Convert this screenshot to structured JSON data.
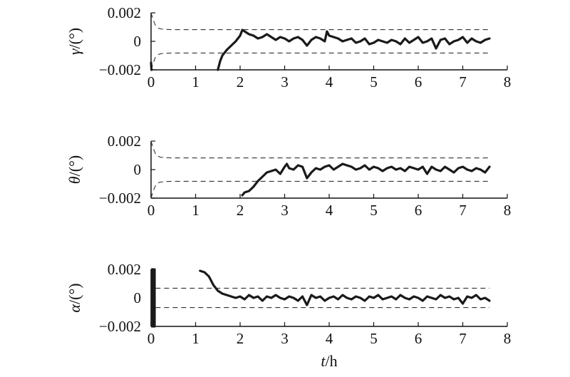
{
  "chart_data": [
    {
      "type": "line",
      "ylabel_symbol": "γ",
      "ylabel_unit": "/(°)",
      "xlim": [
        0,
        8
      ],
      "ylim": [
        -0.002,
        0.002
      ],
      "xticks": [
        0,
        1,
        2,
        3,
        4,
        5,
        6,
        7,
        8
      ],
      "xtick_labels": [
        "0",
        "1",
        "2",
        "3",
        "4",
        "5",
        "6",
        "7",
        "8"
      ],
      "yticks": [
        0.002,
        0,
        -0.002
      ],
      "ytick_labels": [
        "0.002",
        "0",
        "−0.002"
      ],
      "bounds": {
        "style": "dashed",
        "upper": [
          [
            0.0,
            0.002
          ],
          [
            0.05,
            0.0015
          ],
          [
            0.1,
            0.0011
          ],
          [
            0.15,
            0.00095
          ],
          [
            0.2,
            0.00088
          ],
          [
            0.3,
            0.00084
          ],
          [
            0.5,
            0.00082
          ],
          [
            7.6,
            0.00082
          ]
        ],
        "lower": [
          [
            0.0,
            -0.002
          ],
          [
            0.05,
            -0.0015
          ],
          [
            0.1,
            -0.0011
          ],
          [
            0.15,
            -0.00095
          ],
          [
            0.2,
            -0.00088
          ],
          [
            0.3,
            -0.00084
          ],
          [
            0.5,
            -0.00082
          ],
          [
            7.6,
            -0.00082
          ]
        ]
      },
      "series": [
        {
          "x": [
            0.0,
            0.01,
            0.02,
            1.5,
            1.55,
            1.6,
            1.7,
            1.8,
            1.9,
            2.0,
            2.05,
            2.1,
            2.2,
            2.3,
            2.4,
            2.5,
            2.6,
            2.7,
            2.8,
            2.9,
            3.0,
            3.1,
            3.2,
            3.3,
            3.4,
            3.5,
            3.6,
            3.7,
            3.8,
            3.9,
            3.95,
            4.0,
            4.1,
            4.2,
            4.3,
            4.4,
            4.5,
            4.6,
            4.7,
            4.8,
            4.9,
            5.0,
            5.1,
            5.2,
            5.3,
            5.4,
            5.5,
            5.6,
            5.7,
            5.8,
            5.9,
            6.0,
            6.1,
            6.2,
            6.3,
            6.4,
            6.5,
            6.6,
            6.7,
            6.8,
            6.9,
            7.0,
            7.1,
            7.2,
            7.3,
            7.4,
            7.5,
            7.6
          ],
          "y": [
            -0.0015,
            -0.002,
            null,
            -0.002,
            -0.0014,
            -0.001,
            -0.0006,
            -0.0003,
            0.0,
            0.0004,
            0.0008,
            0.0007,
            0.0005,
            0.0004,
            0.0002,
            0.0003,
            0.0005,
            0.0003,
            0.0001,
            0.0003,
            0.0002,
            0.0,
            0.0002,
            0.0003,
            0.0001,
            -0.0003,
            0.0001,
            0.0003,
            0.0002,
            0.0,
            0.0007,
            0.0004,
            0.0003,
            0.0002,
            0.0,
            0.0001,
            0.0002,
            -0.0001,
            0.0,
            0.0002,
            -0.0002,
            -0.0001,
            0.0001,
            0.0,
            -0.0001,
            0.0001,
            0.0,
            -0.0002,
            0.0002,
            -0.0001,
            0.0001,
            0.0003,
            -0.0001,
            0.0,
            0.0002,
            -0.0005,
            0.0001,
            0.0002,
            -0.0002,
            0.0,
            0.0001,
            0.0003,
            -0.0001,
            0.0002,
            0.0,
            -0.0001,
            0.0001,
            0.0002
          ]
        }
      ]
    },
    {
      "type": "line",
      "ylabel_symbol": "θ",
      "ylabel_unit": "/(°)",
      "xlim": [
        0,
        8
      ],
      "ylim": [
        -0.002,
        0.002
      ],
      "xticks": [
        0,
        1,
        2,
        3,
        4,
        5,
        6,
        7,
        8
      ],
      "xtick_labels": [
        "0",
        "1",
        "2",
        "3",
        "4",
        "5",
        "6",
        "7",
        "8"
      ],
      "yticks": [
        0.002,
        0,
        -0.002
      ],
      "ytick_labels": [
        "0.002",
        "0",
        "−0.002"
      ],
      "bounds": {
        "style": "dashed",
        "upper": [
          [
            0.0,
            0.002
          ],
          [
            0.05,
            0.0015
          ],
          [
            0.1,
            0.0011
          ],
          [
            0.15,
            0.00095
          ],
          [
            0.2,
            0.00088
          ],
          [
            0.3,
            0.00084
          ],
          [
            0.5,
            0.00082
          ],
          [
            7.6,
            0.00082
          ]
        ],
        "lower": [
          [
            0.0,
            -0.002
          ],
          [
            0.05,
            -0.0015
          ],
          [
            0.1,
            -0.0011
          ],
          [
            0.15,
            -0.00095
          ],
          [
            0.2,
            -0.00088
          ],
          [
            0.3,
            -0.00084
          ],
          [
            0.5,
            -0.00082
          ],
          [
            7.6,
            -0.00082
          ]
        ]
      },
      "series": [
        {
          "x": [
            2.05,
            2.1,
            2.2,
            2.3,
            2.4,
            2.5,
            2.6,
            2.7,
            2.8,
            2.9,
            3.0,
            3.05,
            3.1,
            3.2,
            3.3,
            3.4,
            3.5,
            3.6,
            3.7,
            3.8,
            3.9,
            4.0,
            4.1,
            4.2,
            4.3,
            4.4,
            4.5,
            4.6,
            4.7,
            4.8,
            4.9,
            5.0,
            5.1,
            5.2,
            5.3,
            5.4,
            5.5,
            5.6,
            5.7,
            5.8,
            5.9,
            6.0,
            6.1,
            6.2,
            6.3,
            6.4,
            6.5,
            6.6,
            6.7,
            6.8,
            6.9,
            7.0,
            7.1,
            7.2,
            7.3,
            7.4,
            7.5,
            7.6
          ],
          "y": [
            -0.0018,
            -0.0016,
            -0.0015,
            -0.0012,
            -0.0008,
            -0.0005,
            -0.0002,
            -0.0001,
            0.0,
            -0.0003,
            0.0002,
            0.0004,
            0.0001,
            0.0,
            0.0003,
            0.0002,
            -0.0006,
            -0.0002,
            0.0001,
            0.0,
            0.0002,
            0.0003,
            0.0,
            0.0002,
            0.0004,
            0.0003,
            0.0002,
            0.0,
            0.0001,
            0.0003,
            0.0,
            0.0002,
            0.0001,
            -0.0001,
            0.0001,
            0.0002,
            0.0,
            0.0001,
            -0.0001,
            0.0002,
            0.0001,
            0.0,
            0.0002,
            -0.0003,
            0.0002,
            0.0,
            -0.0001,
            0.0002,
            0.0,
            -0.0002,
            0.0001,
            0.0002,
            0.0,
            -0.0001,
            0.0001,
            0.0,
            -0.0002,
            0.0002
          ]
        }
      ]
    },
    {
      "type": "line",
      "ylabel_symbol": "α",
      "ylabel_unit": "/(°)",
      "xlabel_symbol": "t",
      "xlabel_unit": "/h",
      "xlim": [
        0,
        8
      ],
      "ylim": [
        -0.002,
        0.002
      ],
      "xticks": [
        0,
        1,
        2,
        3,
        4,
        5,
        6,
        7,
        8
      ],
      "xtick_labels": [
        "0",
        "1",
        "2",
        "3",
        "4",
        "5",
        "6",
        "7",
        "8"
      ],
      "yticks": [
        0.002,
        0,
        -0.002
      ],
      "ytick_labels": [
        "0.002",
        "0",
        "−0.002"
      ],
      "bounds": {
        "style": "dashed",
        "upper": [
          [
            0.1,
            0.00068
          ],
          [
            7.6,
            0.00068
          ]
        ],
        "lower": [
          [
            0.1,
            -0.00068
          ],
          [
            7.6,
            -0.00068
          ]
        ]
      },
      "series": [
        {
          "x": [
            0.02,
            0.02,
            0.05,
            0.05,
            0.08,
            0.08,
            null,
            1.1,
            1.2,
            1.3,
            1.4,
            1.5,
            1.6,
            1.7,
            1.8,
            1.9,
            2.0,
            2.1,
            2.2,
            2.3,
            2.4,
            2.5,
            2.6,
            2.7,
            2.8,
            2.9,
            3.0,
            3.1,
            3.2,
            3.3,
            3.4,
            3.5,
            3.6,
            3.7,
            3.8,
            3.9,
            4.0,
            4.1,
            4.2,
            4.3,
            4.4,
            4.5,
            4.6,
            4.7,
            4.8,
            4.9,
            5.0,
            5.1,
            5.2,
            5.3,
            5.4,
            5.5,
            5.6,
            5.7,
            5.8,
            5.9,
            6.0,
            6.1,
            6.2,
            6.3,
            6.4,
            6.5,
            6.6,
            6.7,
            6.8,
            6.9,
            7.0,
            7.1,
            7.2,
            7.3,
            7.4,
            7.5,
            7.6
          ],
          "y": [
            -0.002,
            0.002,
            0.002,
            -0.002,
            -0.002,
            0.002,
            null,
            0.0019,
            0.0018,
            0.0015,
            0.0009,
            0.0005,
            0.0003,
            0.0002,
            0.0001,
            0.0,
            0.0001,
            -0.0001,
            0.0002,
            0.0,
            0.0001,
            -0.0002,
            0.0001,
            0.0,
            0.0002,
            0.0,
            -0.0001,
            0.0001,
            0.0,
            -0.0002,
            0.0001,
            -0.0005,
            0.0002,
            0.0,
            0.0001,
            -0.0002,
            0.0,
            0.0001,
            -0.0001,
            0.0002,
            0.0,
            -0.0001,
            0.0001,
            0.0,
            -0.0002,
            0.0001,
            0.0,
            0.0002,
            -0.0001,
            0.0,
            0.0001,
            -0.0001,
            0.0002,
            0.0,
            -0.0001,
            0.0001,
            0.0,
            -0.0002,
            0.0001,
            0.0,
            -0.0001,
            0.0002,
            0.0,
            0.0001,
            -0.0001,
            0.0,
            -0.0004,
            0.0001,
            0.0,
            0.0002,
            -0.0001,
            0.0,
            -0.0002
          ]
        }
      ]
    }
  ]
}
